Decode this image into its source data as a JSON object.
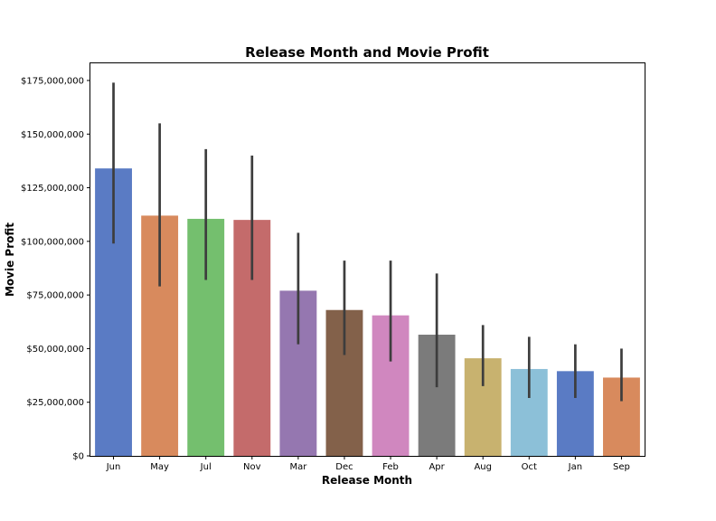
{
  "chart_data": {
    "type": "bar",
    "title": "Release Month and Movie Profit",
    "xlabel": "Release Month",
    "ylabel": "Movie Profit",
    "ylim": [
      0,
      183000000
    ],
    "yticks": [
      0,
      25000000,
      50000000,
      75000000,
      100000000,
      125000000,
      150000000,
      175000000
    ],
    "ytick_labels": [
      "$0",
      "$25,000,000",
      "$50,000,000",
      "$75,000,000",
      "$100,000,000",
      "$125,000,000",
      "$150,000,000",
      "$175,000,000"
    ],
    "grid": false,
    "categories": [
      "Jun",
      "May",
      "Jul",
      "Nov",
      "Mar",
      "Dec",
      "Feb",
      "Apr",
      "Aug",
      "Oct",
      "Jan",
      "Sep"
    ],
    "values": [
      134000000,
      112000000,
      110500000,
      110000000,
      77000000,
      68000000,
      65500000,
      56500000,
      45500000,
      40500000,
      39500000,
      36500000
    ],
    "error_low": [
      99000000,
      79000000,
      82000000,
      82000000,
      52000000,
      47000000,
      44000000,
      32000000,
      32500000,
      27000000,
      27000000,
      25500000
    ],
    "error_high": [
      174000000,
      155000000,
      143000000,
      140000000,
      104000000,
      91000000,
      91000000,
      85000000,
      61000000,
      55500000,
      52000000,
      50000000
    ],
    "colors": [
      "#5a7bc4",
      "#d88a5d",
      "#74bf6e",
      "#c46b6b",
      "#9577b0",
      "#83614a",
      "#d087bf",
      "#7b7b7b",
      "#c8b26f",
      "#8cc0d8",
      "#5a7bc4",
      "#d88a5d"
    ]
  }
}
